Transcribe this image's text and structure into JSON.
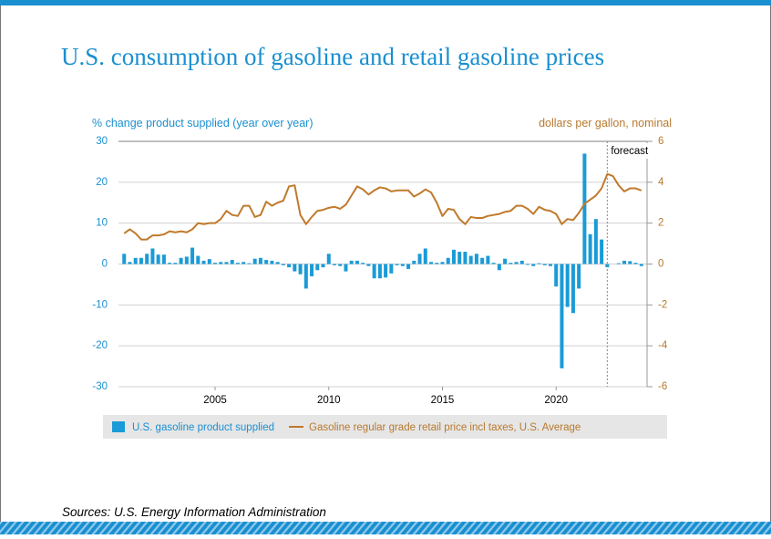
{
  "chart_data": {
    "type": "combo",
    "title": "U.S. consumption of gasoline and retail gasoline prices",
    "y_label": "% change product supplied (year over year)",
    "y2_label": "dollars per gallon, nominal",
    "source": "Sources: U.S. Energy Information Administration",
    "annotations": [
      {
        "text": "forecast",
        "x": 2022.25
      }
    ],
    "x": [
      2001,
      2001.25,
      2001.5,
      2001.75,
      2002,
      2002.25,
      2002.5,
      2002.75,
      2003,
      2003.25,
      2003.5,
      2003.75,
      2004,
      2004.25,
      2004.5,
      2004.75,
      2005,
      2005.25,
      2005.5,
      2005.75,
      2006,
      2006.25,
      2006.5,
      2006.75,
      2007,
      2007.25,
      2007.5,
      2007.75,
      2008,
      2008.25,
      2008.5,
      2008.75,
      2009,
      2009.25,
      2009.5,
      2009.75,
      2010,
      2010.25,
      2010.5,
      2010.75,
      2011,
      2011.25,
      2011.5,
      2011.75,
      2012,
      2012.25,
      2012.5,
      2012.75,
      2013,
      2013.25,
      2013.5,
      2013.75,
      2014,
      2014.25,
      2014.5,
      2014.75,
      2015,
      2015.25,
      2015.5,
      2015.75,
      2016,
      2016.25,
      2016.5,
      2016.75,
      2017,
      2017.25,
      2017.5,
      2017.75,
      2018,
      2018.25,
      2018.5,
      2018.75,
      2019,
      2019.25,
      2019.5,
      2019.75,
      2020,
      2020.25,
      2020.5,
      2020.75,
      2021,
      2021.25,
      2021.5,
      2021.75,
      2022,
      2022.25,
      2022.5,
      2022.75,
      2023,
      2023.25,
      2023.5,
      2023.75
    ],
    "series": [
      {
        "name": "U.S. gasoline product supplied",
        "type": "bar",
        "color": "#1a9bd7",
        "values": [
          2.5,
          0.5,
          1.5,
          1.5,
          2.5,
          3.8,
          2.3,
          2.3,
          0.3,
          0.3,
          1.5,
          1.8,
          4,
          2,
          0.8,
          1.2,
          0.3,
          0.5,
          0.5,
          1,
          0.3,
          0.5,
          0.2,
          1.3,
          1.5,
          1,
          0.8,
          0.5,
          -0.3,
          -0.8,
          -1.8,
          -2.5,
          -6,
          -3,
          -1.5,
          -0.8,
          2.5,
          -0.3,
          -0.5,
          -1.8,
          0.8,
          0.8,
          0.3,
          -0.5,
          -3.5,
          -3.5,
          -3.3,
          -2.3,
          -0.3,
          -0.5,
          -1.2,
          0.8,
          2.5,
          3.8,
          0.5,
          0.3,
          0.5,
          1.5,
          3.5,
          3,
          3,
          2,
          2.5,
          1.5,
          2,
          0.3,
          -1.5,
          1.3,
          0.3,
          0.5,
          0.8,
          -0.2,
          -0.5,
          0.2,
          -0.3,
          -0.5,
          -5.5,
          -25.5,
          -10.5,
          -12,
          -6,
          27,
          7.3,
          11,
          6,
          -0.8,
          0,
          0.2,
          0.8,
          0.7,
          0.3,
          -0.5
        ]
      },
      {
        "name": "Gasoline regular grade retail price incl taxes, U.S. Average",
        "type": "line",
        "axis": "y2",
        "color": "#c07a2c",
        "values": [
          1.5,
          1.7,
          1.5,
          1.2,
          1.2,
          1.4,
          1.4,
          1.45,
          1.6,
          1.55,
          1.6,
          1.55,
          1.7,
          2.0,
          1.95,
          2.0,
          2.0,
          2.2,
          2.6,
          2.4,
          2.35,
          2.85,
          2.85,
          2.3,
          2.4,
          3.05,
          2.85,
          3.0,
          3.1,
          3.8,
          3.85,
          2.4,
          1.95,
          2.3,
          2.6,
          2.65,
          2.75,
          2.8,
          2.7,
          2.9,
          3.35,
          3.8,
          3.65,
          3.4,
          3.6,
          3.75,
          3.7,
          3.55,
          3.6,
          3.6,
          3.6,
          3.3,
          3.45,
          3.65,
          3.5,
          3.0,
          2.35,
          2.7,
          2.65,
          2.2,
          1.95,
          2.3,
          2.25,
          2.25,
          2.35,
          2.4,
          2.45,
          2.55,
          2.6,
          2.85,
          2.85,
          2.7,
          2.45,
          2.8,
          2.65,
          2.6,
          2.45,
          1.95,
          2.2,
          2.15,
          2.5,
          2.95,
          3.15,
          3.35,
          3.7,
          4.4,
          4.3,
          3.85,
          3.55,
          3.7,
          3.7,
          3.6
        ]
      }
    ],
    "xlim": [
      2000.75,
      2024
    ],
    "xticks": [
      2005,
      2010,
      2015,
      2020
    ],
    "ylim": [
      -30,
      30
    ],
    "yticks": [
      -30,
      -20,
      -10,
      0,
      10,
      20,
      30
    ],
    "y2lim": [
      -6,
      6
    ],
    "y2ticks": [
      -6,
      -4,
      -2,
      0,
      2,
      4,
      6
    ],
    "grid": true,
    "legend": "bottom"
  }
}
